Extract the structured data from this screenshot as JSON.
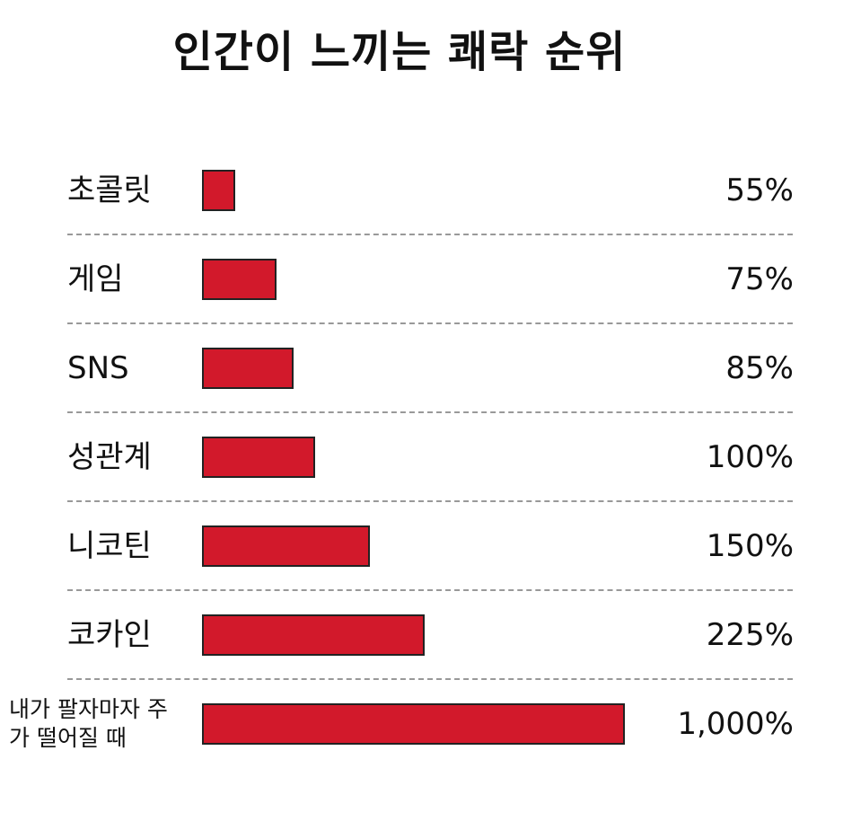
{
  "chart_data": {
    "type": "bar",
    "title": "인간이 느끼는 쾌락 순위",
    "categories": [
      "초콜릿",
      "게임",
      "SNS",
      "성관계",
      "니코틴",
      "코카인",
      "내가 팔자마자 주가 떨어질 때"
    ],
    "values": [
      55,
      75,
      85,
      100,
      150,
      225,
      1000
    ],
    "value_labels": [
      "55%",
      "75%",
      "85%",
      "100%",
      "150%",
      "225%",
      "1,000%"
    ],
    "color": "#d2192b",
    "log_scale": true
  }
}
